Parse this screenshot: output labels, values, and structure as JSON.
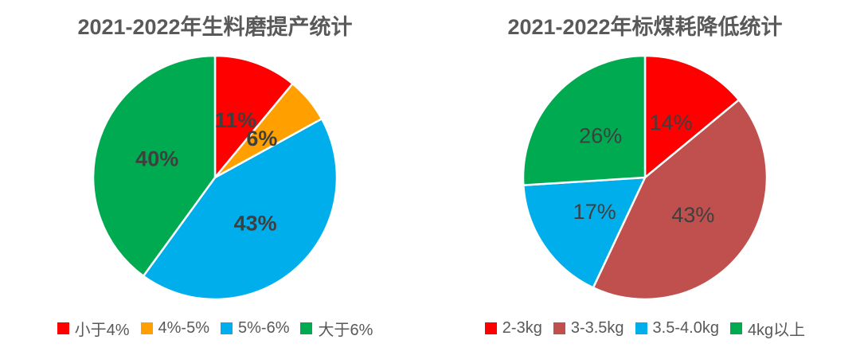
{
  "page": {
    "background": "#ffffff",
    "text_gray": "#595959",
    "label_gray": "#3f3f3f"
  },
  "chart_data": [
    {
      "type": "pie",
      "title": "2021-2022年生料磨提产统计",
      "categories": [
        "小于4%",
        "4%-5%",
        "5%-6%",
        "大于6%"
      ],
      "values": [
        11,
        6,
        43,
        40
      ],
      "labels": [
        "11%",
        "6%",
        "43%",
        "40%"
      ],
      "colors": [
        "#fe0000",
        "#ffa000",
        "#00aeec",
        "#00aa50"
      ],
      "label_color": "#3f3f3f",
      "label_weight": "700",
      "label_size": 27,
      "start_angle_deg": 0,
      "direction": "clockwise",
      "legend_position": "bottom"
    },
    {
      "type": "pie",
      "title": "2021-2022年标煤耗降低统计",
      "categories": [
        "2-3kg",
        "3-3.5kg",
        "3.5-4.0kg",
        "4kg以上"
      ],
      "values": [
        14,
        43,
        17,
        26
      ],
      "labels": [
        "14%",
        "43%",
        "17%",
        "26%"
      ],
      "colors": [
        "#fe0000",
        "#c0504d",
        "#00aeec",
        "#00aa50"
      ],
      "label_color": "#3f3f3f",
      "label_weight": "400",
      "label_size": 27,
      "start_angle_deg": 0,
      "direction": "clockwise",
      "legend_position": "bottom"
    }
  ]
}
